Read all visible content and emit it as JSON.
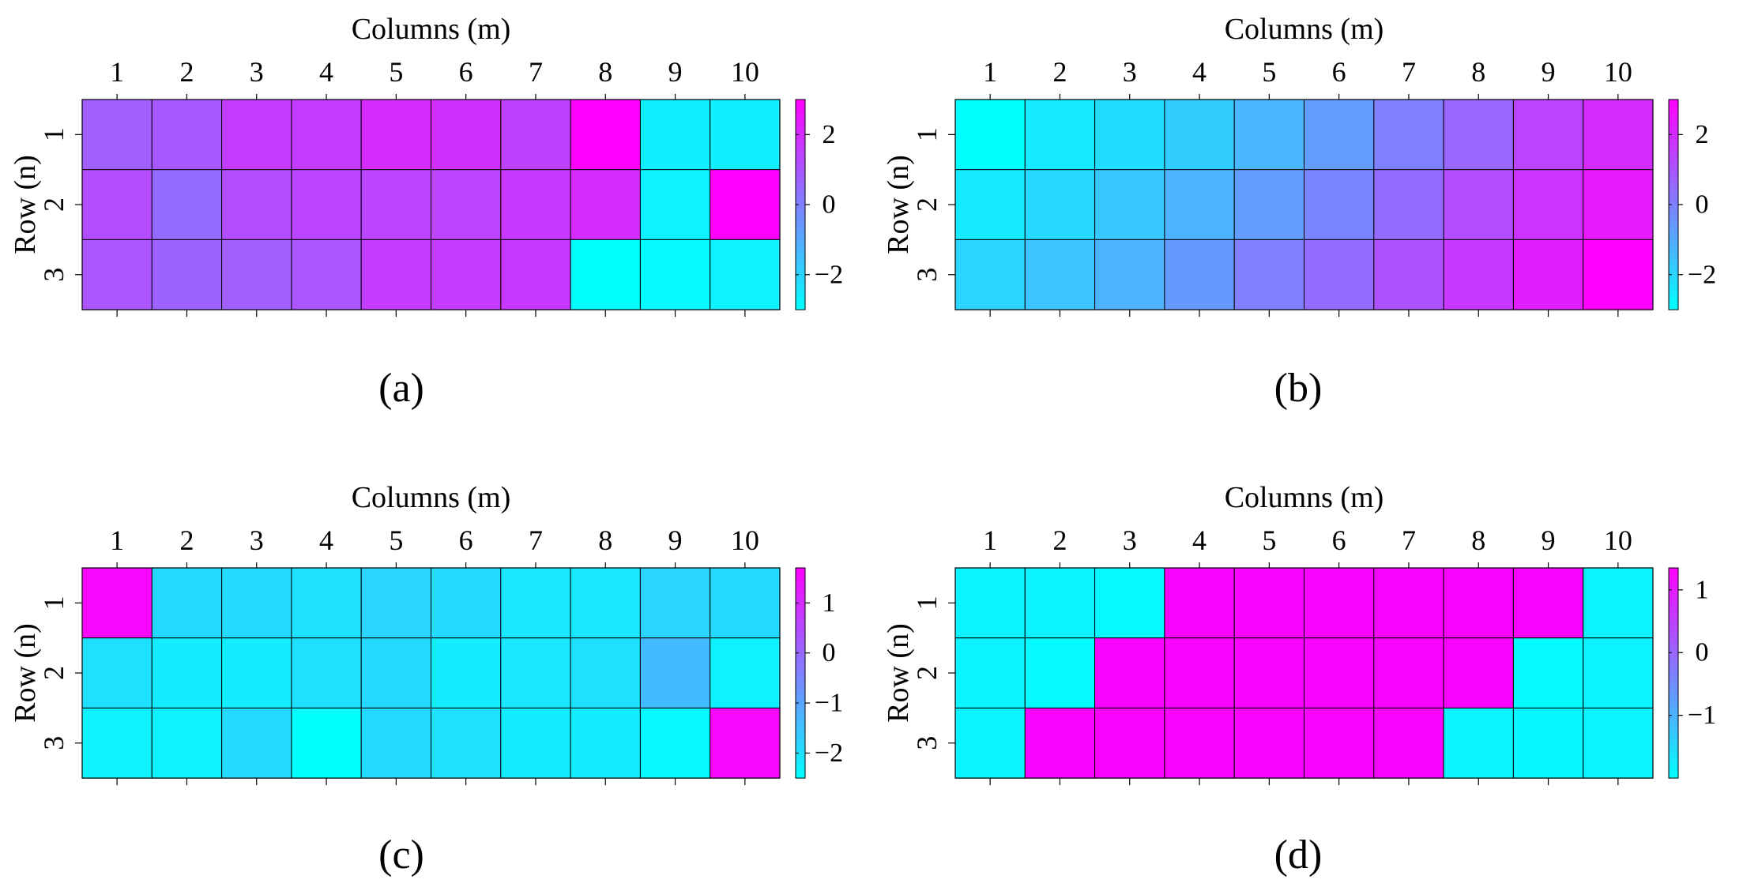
{
  "colormap": {
    "low": "#00ffff",
    "high": "#ff00ff"
  },
  "chart_data": [
    {
      "type": "heatmap",
      "panel_label": "(a)",
      "xlabel": "Columns (m)",
      "ylabel": "Row (n)",
      "x_ticks": [
        "1",
        "2",
        "3",
        "4",
        "5",
        "6",
        "7",
        "8",
        "9",
        "10"
      ],
      "y_ticks": [
        "1",
        "2",
        "3"
      ],
      "values": [
        [
          0.8,
          0.9,
          1.6,
          1.6,
          2.0,
          1.9,
          1.5,
          3.0,
          -2.6,
          -2.6
        ],
        [
          1.2,
          0.5,
          1.2,
          1.4,
          1.4,
          1.4,
          1.7,
          2.0,
          -2.7,
          3.0
        ],
        [
          1.0,
          0.7,
          0.8,
          1.0,
          1.6,
          1.6,
          1.7,
          -3.0,
          -2.9,
          -2.7
        ]
      ],
      "clim": [
        -3.0,
        3.0
      ],
      "colorbar_ticks": [
        -2,
        0,
        2
      ],
      "colorbar_tick_labels": [
        "−2",
        "0",
        "2"
      ]
    },
    {
      "type": "heatmap",
      "panel_label": "(b)",
      "xlabel": "Columns (m)",
      "ylabel": "Row (n)",
      "x_ticks": [
        "1",
        "2",
        "3",
        "4",
        "5",
        "6",
        "7",
        "8",
        "9",
        "10"
      ],
      "y_ticks": [
        "1",
        "2",
        "3"
      ],
      "values": [
        [
          -3.0,
          -2.5,
          -2.2,
          -1.8,
          -1.3,
          -0.7,
          0.0,
          0.6,
          1.4,
          2.0
        ],
        [
          -2.5,
          -2.1,
          -1.7,
          -1.2,
          -0.7,
          -0.1,
          0.5,
          1.2,
          1.8,
          2.4
        ],
        [
          -2.0,
          -1.6,
          -1.2,
          -0.6,
          0.0,
          0.5,
          1.1,
          1.7,
          2.3,
          3.0
        ]
      ],
      "clim": [
        -3.0,
        3.0
      ],
      "colorbar_ticks": [
        -2,
        0,
        2
      ],
      "colorbar_tick_labels": [
        "−2",
        "0",
        "2"
      ]
    },
    {
      "type": "heatmap",
      "panel_label": "(c)",
      "xlabel": "Columns (m)",
      "ylabel": "Row (n)",
      "x_ticks": [
        "1",
        "2",
        "3",
        "4",
        "5",
        "6",
        "7",
        "8",
        "9",
        "10"
      ],
      "y_ticks": [
        "1",
        "2",
        "3"
      ],
      "values": [
        [
          1.6,
          -1.9,
          -1.9,
          -2.0,
          -1.8,
          -1.9,
          -2.1,
          -2.1,
          -1.8,
          -1.9
        ],
        [
          -2.0,
          -2.2,
          -2.2,
          -2.0,
          -1.9,
          -2.2,
          -2.1,
          -2.0,
          -1.4,
          -2.3
        ],
        [
          -2.3,
          -2.3,
          -1.9,
          -2.5,
          -1.9,
          -2.0,
          -2.2,
          -2.2,
          -2.4,
          1.6
        ]
      ],
      "clim": [
        -2.5,
        1.7
      ],
      "colorbar_ticks": [
        -2,
        -1,
        0,
        1
      ],
      "colorbar_tick_labels": [
        "−2",
        "−1",
        "0",
        "1"
      ]
    },
    {
      "type": "heatmap",
      "panel_label": "(d)",
      "xlabel": "Columns (m)",
      "ylabel": "Row (n)",
      "x_ticks": [
        "1",
        "2",
        "3",
        "4",
        "5",
        "6",
        "7",
        "8",
        "9",
        "10"
      ],
      "y_ticks": [
        "1",
        "2",
        "3"
      ],
      "values": [
        [
          -1.85,
          -1.85,
          -1.95,
          1.3,
          1.3,
          1.3,
          1.3,
          1.3,
          1.3,
          -1.85
        ],
        [
          -1.85,
          -1.95,
          1.3,
          1.3,
          1.3,
          1.3,
          1.3,
          1.3,
          -1.95,
          -1.85
        ],
        [
          -1.85,
          1.3,
          1.3,
          1.3,
          1.3,
          1.3,
          1.3,
          -1.85,
          -1.9,
          -1.85
        ]
      ],
      "clim": [
        -2.0,
        1.35
      ],
      "colorbar_ticks": [
        -1,
        0,
        1
      ],
      "colorbar_tick_labels": [
        "−1",
        "0",
        "1"
      ]
    }
  ]
}
